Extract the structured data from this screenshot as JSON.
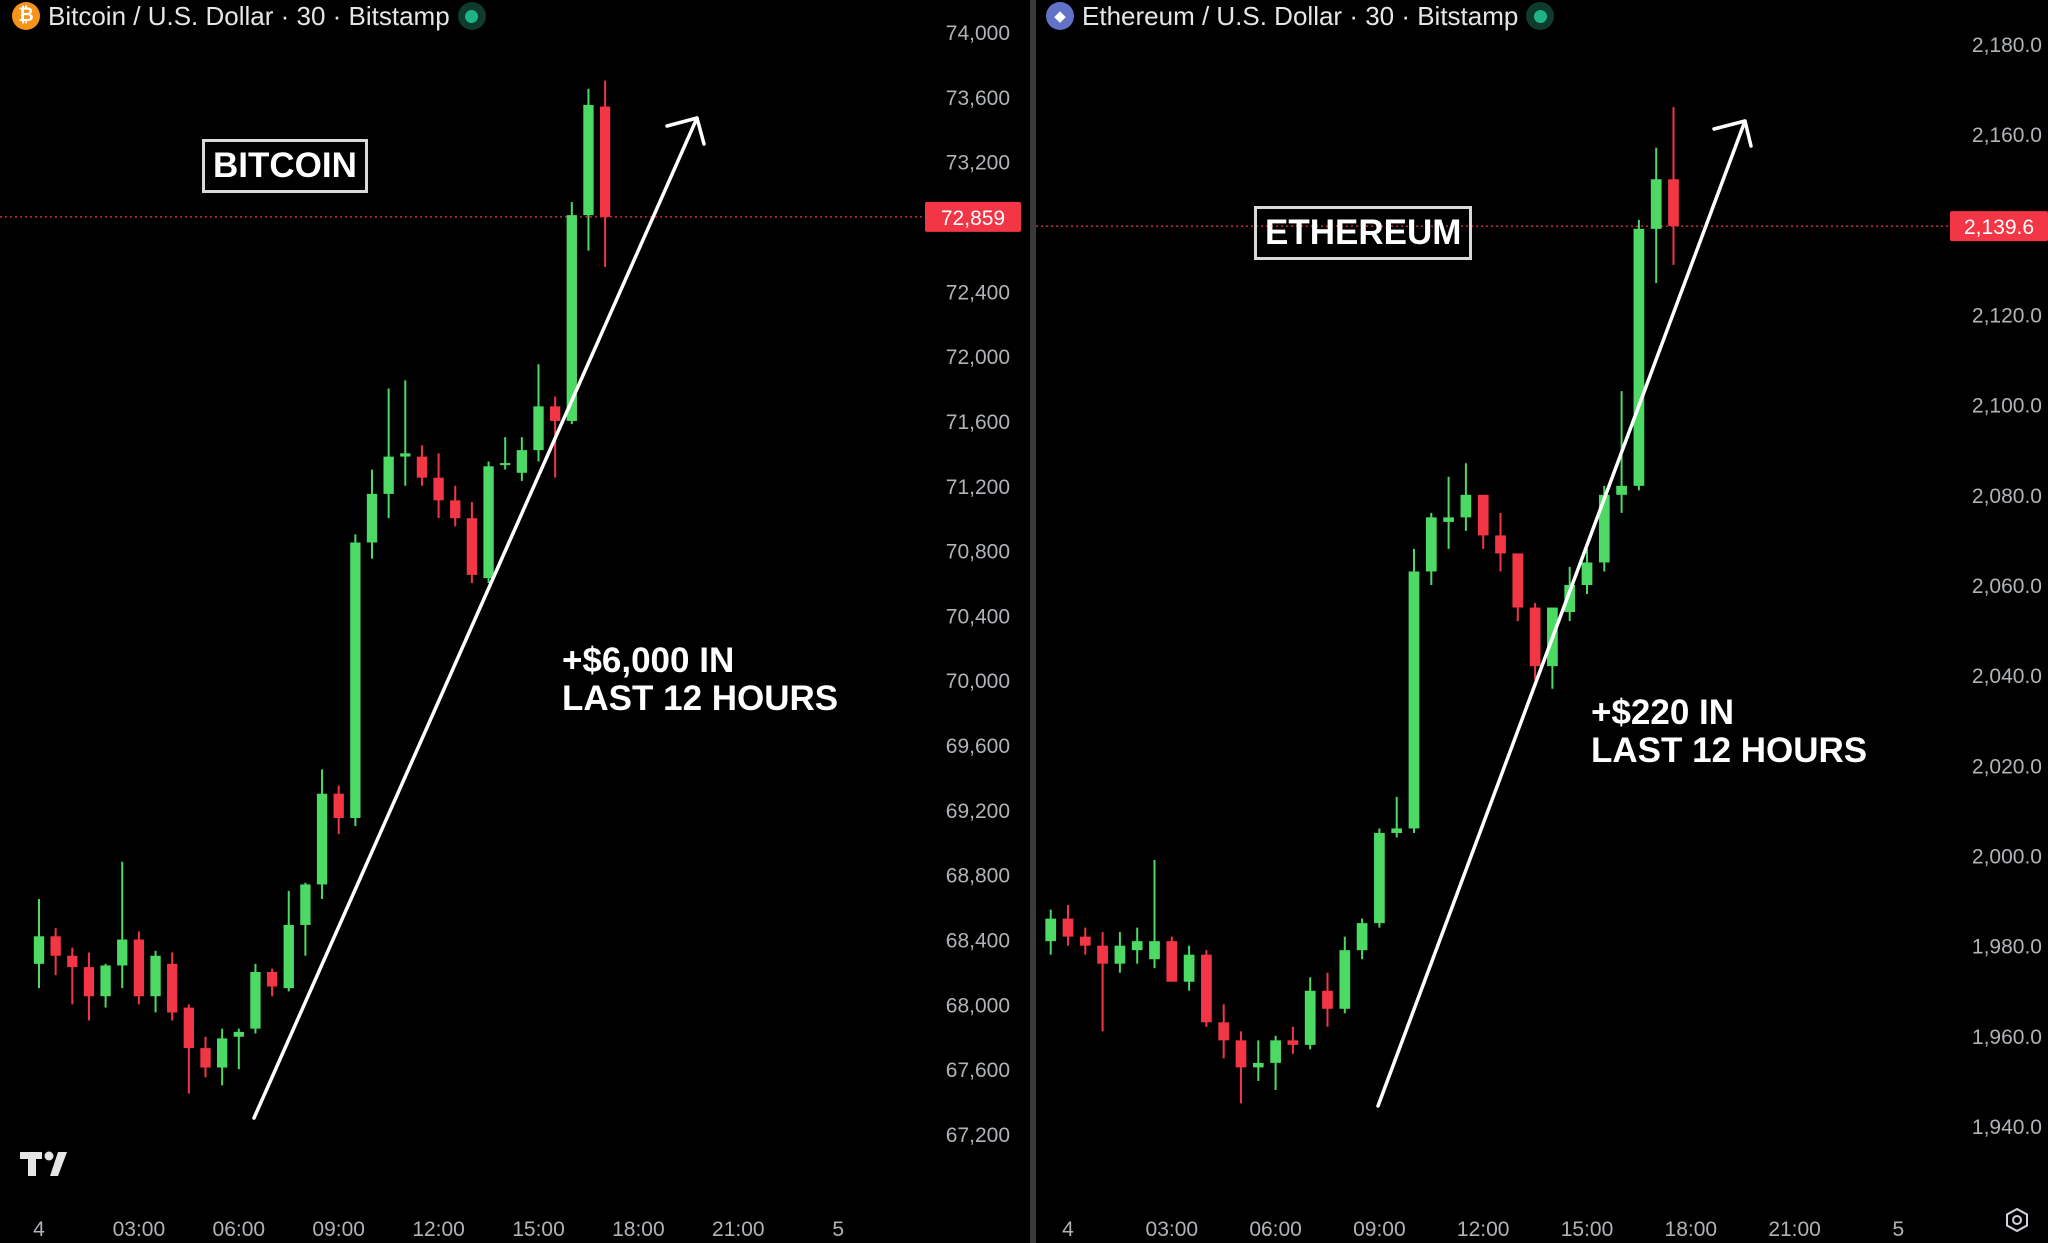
{
  "colors": {
    "up": "#4cd964",
    "down": "#f23645",
    "price_tag": "#f23645",
    "background": "#000000",
    "axis_text": "#b0b3b8"
  },
  "panels": [
    {
      "id": "btc",
      "header": {
        "title": "Bitcoin / U.S. Dollar · 30 · Bitstamp",
        "icon": "bitcoin-icon",
        "icon_glyph": "₿",
        "icon_color": "#f7931a"
      },
      "label": "BITCOIN",
      "annotation": {
        "line1": "+$6,000 IN",
        "line2": "LAST 12 HOURS"
      },
      "last_price_label": "72,859"
    },
    {
      "id": "eth",
      "header": {
        "title": "Ethereum / U.S. Dollar · 30 · Bitstamp",
        "icon": "ethereum-icon",
        "icon_glyph": "◆",
        "icon_color": "#6272c7"
      },
      "label": "ETHEREUM",
      "annotation": {
        "line1": "+$220 IN",
        "line2": "LAST 12 HOURS"
      },
      "last_price_label": "2,139.6"
    }
  ],
  "chart_data": [
    {
      "type": "candlestick",
      "title": "Bitcoin / U.S. Dollar · 30 · Bitstamp",
      "ylim": [
        66800,
        74200
      ],
      "y_ticks": [
        "74,000",
        "73,600",
        "73,200",
        "72,400",
        "72,000",
        "71,600",
        "71,200",
        "70,800",
        "70,400",
        "70,000",
        "69,600",
        "69,200",
        "68,800",
        "68,400",
        "68,000",
        "67,600",
        "67,200"
      ],
      "y_tick_values": [
        74000,
        73600,
        73200,
        72400,
        72000,
        71600,
        71200,
        70800,
        70400,
        70000,
        69600,
        69200,
        68800,
        68400,
        68000,
        67600,
        67200
      ],
      "x_ticks": [
        "4",
        "03:00",
        "06:00",
        "09:00",
        "12:00",
        "15:00",
        "18:00",
        "21:00",
        "5"
      ],
      "x_tick_hours": [
        0,
        3,
        6,
        9,
        12,
        15,
        18,
        21,
        24
      ],
      "last_price": 72859,
      "candles": [
        {
          "t": 0.0,
          "o": 68250,
          "h": 68650,
          "l": 68100,
          "c": 68420
        },
        {
          "t": 0.5,
          "o": 68420,
          "h": 68470,
          "l": 68180,
          "c": 68300
        },
        {
          "t": 1.0,
          "o": 68300,
          "h": 68350,
          "l": 68000,
          "c": 68230
        },
        {
          "t": 1.5,
          "o": 68230,
          "h": 68320,
          "l": 67900,
          "c": 68050
        },
        {
          "t": 2.0,
          "o": 68050,
          "h": 68250,
          "l": 67980,
          "c": 68240
        },
        {
          "t": 2.5,
          "o": 68240,
          "h": 68880,
          "l": 68100,
          "c": 68400
        },
        {
          "t": 3.0,
          "o": 68400,
          "h": 68450,
          "l": 68000,
          "c": 68050
        },
        {
          "t": 3.5,
          "o": 68050,
          "h": 68330,
          "l": 67950,
          "c": 68300
        },
        {
          "t": 4.0,
          "o": 68250,
          "h": 68320,
          "l": 67900,
          "c": 67950
        },
        {
          "t": 4.5,
          "o": 67980,
          "h": 68000,
          "l": 67450,
          "c": 67730
        },
        {
          "t": 5.0,
          "o": 67730,
          "h": 67800,
          "l": 67550,
          "c": 67610
        },
        {
          "t": 5.5,
          "o": 67610,
          "h": 67850,
          "l": 67500,
          "c": 67790
        },
        {
          "t": 6.0,
          "o": 67800,
          "h": 67850,
          "l": 67600,
          "c": 67830
        },
        {
          "t": 6.5,
          "o": 67850,
          "h": 68250,
          "l": 67820,
          "c": 68200
        },
        {
          "t": 7.0,
          "o": 68200,
          "h": 68220,
          "l": 68050,
          "c": 68110
        },
        {
          "t": 7.5,
          "o": 68100,
          "h": 68700,
          "l": 68080,
          "c": 68490
        },
        {
          "t": 8.0,
          "o": 68490,
          "h": 68750,
          "l": 68300,
          "c": 68740
        },
        {
          "t": 8.5,
          "o": 68740,
          "h": 69450,
          "l": 68650,
          "c": 69300
        },
        {
          "t": 9.0,
          "o": 69300,
          "h": 69350,
          "l": 69050,
          "c": 69150
        },
        {
          "t": 9.5,
          "o": 69150,
          "h": 70900,
          "l": 69100,
          "c": 70850
        },
        {
          "t": 10.0,
          "o": 70850,
          "h": 71300,
          "l": 70750,
          "c": 71150
        },
        {
          "t": 10.5,
          "o": 71150,
          "h": 71800,
          "l": 71000,
          "c": 71380
        },
        {
          "t": 11.0,
          "o": 71380,
          "h": 71850,
          "l": 71200,
          "c": 71400
        },
        {
          "t": 11.5,
          "o": 71380,
          "h": 71450,
          "l": 71200,
          "c": 71250
        },
        {
          "t": 12.0,
          "o": 71250,
          "h": 71400,
          "l": 71000,
          "c": 71110
        },
        {
          "t": 12.5,
          "o": 71110,
          "h": 71200,
          "l": 70950,
          "c": 71000
        },
        {
          "t": 13.0,
          "o": 71000,
          "h": 71100,
          "l": 70600,
          "c": 70650
        },
        {
          "t": 13.5,
          "o": 70630,
          "h": 71350,
          "l": 70600,
          "c": 71320
        },
        {
          "t": 14.0,
          "o": 71330,
          "h": 71500,
          "l": 71300,
          "c": 71340
        },
        {
          "t": 14.5,
          "o": 71280,
          "h": 71500,
          "l": 71230,
          "c": 71420
        },
        {
          "t": 15.0,
          "o": 71420,
          "h": 71950,
          "l": 71350,
          "c": 71690
        },
        {
          "t": 15.5,
          "o": 71690,
          "h": 71750,
          "l": 71250,
          "c": 71600
        },
        {
          "t": 16.0,
          "o": 71600,
          "h": 72950,
          "l": 71580,
          "c": 72870
        },
        {
          "t": 16.5,
          "o": 72870,
          "h": 73650,
          "l": 72650,
          "c": 73550
        },
        {
          "t": 17.0,
          "o": 73540,
          "h": 73700,
          "l": 72550,
          "c": 72859
        }
      ]
    },
    {
      "type": "candlestick",
      "title": "Ethereum / U.S. Dollar · 30 · Bitstamp",
      "ylim": [
        1931,
        2185
      ],
      "y_ticks": [
        "2,180.0",
        "2,160.0",
        "2,120.0",
        "2,100.0",
        "2,080.0",
        "2,060.0",
        "2,040.0",
        "2,020.0",
        "2,000.0",
        "1,980.0",
        "1,960.0",
        "1,940.0"
      ],
      "y_tick_values": [
        2180,
        2160,
        2120,
        2100,
        2080,
        2060,
        2040,
        2020,
        2000,
        1980,
        1960,
        1940
      ],
      "x_ticks": [
        "4",
        "03:00",
        "06:00",
        "09:00",
        "12:00",
        "15:00",
        "18:00",
        "21:00",
        "5"
      ],
      "x_tick_hours": [
        0,
        3,
        6,
        9,
        12,
        15,
        18,
        21,
        24
      ],
      "last_price": 2139.6,
      "candles": [
        {
          "t": -0.5,
          "o": 1981,
          "h": 1988,
          "l": 1978,
          "c": 1986
        },
        {
          "t": 0.0,
          "o": 1986,
          "h": 1989,
          "l": 1980,
          "c": 1982
        },
        {
          "t": 0.5,
          "o": 1982,
          "h": 1984,
          "l": 1978,
          "c": 1980
        },
        {
          "t": 1.0,
          "o": 1980,
          "h": 1983,
          "l": 1961,
          "c": 1976
        },
        {
          "t": 1.5,
          "o": 1976,
          "h": 1983,
          "l": 1974,
          "c": 1980
        },
        {
          "t": 2.0,
          "o": 1979,
          "h": 1984,
          "l": 1976,
          "c": 1981
        },
        {
          "t": 2.5,
          "o": 1977,
          "h": 1999,
          "l": 1975,
          "c": 1981
        },
        {
          "t": 3.0,
          "o": 1981,
          "h": 1982,
          "l": 1972,
          "c": 1972
        },
        {
          "t": 3.5,
          "o": 1972,
          "h": 1980,
          "l": 1970,
          "c": 1978
        },
        {
          "t": 4.0,
          "o": 1978,
          "h": 1979,
          "l": 1962,
          "c": 1963
        },
        {
          "t": 4.5,
          "o": 1963,
          "h": 1967,
          "l": 1955,
          "c": 1959
        },
        {
          "t": 5.0,
          "o": 1959,
          "h": 1961,
          "l": 1945,
          "c": 1953
        },
        {
          "t": 5.5,
          "o": 1953,
          "h": 1959,
          "l": 1950,
          "c": 1954
        },
        {
          "t": 6.0,
          "o": 1954,
          "h": 1960,
          "l": 1948,
          "c": 1959
        },
        {
          "t": 6.5,
          "o": 1959,
          "h": 1962,
          "l": 1956,
          "c": 1958
        },
        {
          "t": 7.0,
          "o": 1958,
          "h": 1973,
          "l": 1957,
          "c": 1970
        },
        {
          "t": 7.5,
          "o": 1970,
          "h": 1974,
          "l": 1962,
          "c": 1966
        },
        {
          "t": 8.0,
          "o": 1966,
          "h": 1982,
          "l": 1965,
          "c": 1979
        },
        {
          "t": 8.5,
          "o": 1979,
          "h": 1986,
          "l": 1977,
          "c": 1985
        },
        {
          "t": 9.0,
          "o": 1985,
          "h": 2006,
          "l": 1984,
          "c": 2005
        },
        {
          "t": 9.5,
          "o": 2005,
          "h": 2013,
          "l": 2004,
          "c": 2006
        },
        {
          "t": 10.0,
          "o": 2006,
          "h": 2068,
          "l": 2005,
          "c": 2063
        },
        {
          "t": 10.5,
          "o": 2063,
          "h": 2076,
          "l": 2060,
          "c": 2075
        },
        {
          "t": 11.0,
          "o": 2074,
          "h": 2084,
          "l": 2068,
          "c": 2075
        },
        {
          "t": 11.5,
          "o": 2075,
          "h": 2087,
          "l": 2072,
          "c": 2080
        },
        {
          "t": 12.0,
          "o": 2080,
          "h": 2080,
          "l": 2068,
          "c": 2071
        },
        {
          "t": 12.5,
          "o": 2071,
          "h": 2076,
          "l": 2063,
          "c": 2067
        },
        {
          "t": 13.0,
          "o": 2067,
          "h": 2067,
          "l": 2052,
          "c": 2055
        },
        {
          "t": 13.5,
          "o": 2055,
          "h": 2056,
          "l": 2039,
          "c": 2042
        },
        {
          "t": 14.0,
          "o": 2042,
          "h": 2055,
          "l": 2037,
          "c": 2055
        },
        {
          "t": 14.5,
          "o": 2054,
          "h": 2064,
          "l": 2052,
          "c": 2060
        },
        {
          "t": 15.0,
          "o": 2060,
          "h": 2068,
          "l": 2058,
          "c": 2065
        },
        {
          "t": 15.5,
          "o": 2065,
          "h": 2082,
          "l": 2063,
          "c": 2080
        },
        {
          "t": 16.0,
          "o": 2080,
          "h": 2103,
          "l": 2076,
          "c": 2082
        },
        {
          "t": 16.5,
          "o": 2082,
          "h": 2141,
          "l": 2081,
          "c": 2139
        },
        {
          "t": 17.0,
          "o": 2139,
          "h": 2157,
          "l": 2127,
          "c": 2150
        },
        {
          "t": 17.5,
          "o": 2150,
          "h": 2166,
          "l": 2131,
          "c": 2139.6
        }
      ]
    }
  ]
}
